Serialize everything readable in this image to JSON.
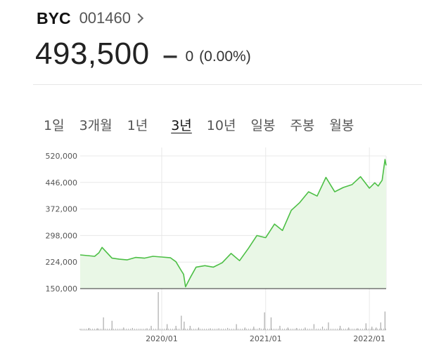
{
  "header": {
    "name": "BYC",
    "code": "001460",
    "price": "493,500",
    "change_symbol": "‒",
    "change_value": "0",
    "change_percent": "(0.00%)"
  },
  "tabs": [
    {
      "label": "1일",
      "active": false
    },
    {
      "label": "3개월",
      "active": false
    },
    {
      "label": "1년",
      "active": false
    },
    {
      "label": "3년",
      "active": true
    },
    {
      "label": "10년",
      "active": false
    },
    {
      "label": "일봉",
      "active": false
    },
    {
      "label": "주봉",
      "active": false
    },
    {
      "label": "월봉",
      "active": false
    }
  ],
  "colors": {
    "line": "#4cbf45",
    "fill": "#e9f7e6",
    "volume": "#aaaaaa",
    "grid": "#e8e8e8"
  },
  "chart_data": {
    "type": "area",
    "title": "",
    "xlabel": "",
    "ylabel": "",
    "ylim": [
      150000,
      520000
    ],
    "yticks": [
      520000,
      446000,
      372000,
      298000,
      224000,
      150000
    ],
    "ytick_labels": [
      "520,000",
      "446,000",
      "372,000",
      "298,000",
      "224,000",
      "150,000"
    ],
    "xlim": [
      "2019-03-20",
      "2022-03-01"
    ],
    "xticks": [
      "2020-01-01",
      "2021-01-01",
      "2022-01-01"
    ],
    "xtick_labels": [
      "2020/01",
      "2021/01",
      "2022/01"
    ],
    "grid": true,
    "series": [
      {
        "x": [
          "2019-03-20",
          "2019-04-15",
          "2019-05-10",
          "2019-05-25",
          "2019-06-05",
          "2019-06-20",
          "2019-07-10",
          "2019-08-05",
          "2019-09-01",
          "2019-10-01",
          "2019-11-01",
          "2019-12-01",
          "2020-01-01",
          "2020-02-01",
          "2020-02-20",
          "2020-03-10",
          "2020-03-18",
          "2020-03-25",
          "2020-04-10",
          "2020-05-01",
          "2020-06-01",
          "2020-07-01",
          "2020-08-01",
          "2020-09-01",
          "2020-10-01",
          "2020-11-01",
          "2020-12-01",
          "2021-01-01",
          "2021-02-01",
          "2021-03-01",
          "2021-04-01",
          "2021-05-01",
          "2021-06-01",
          "2021-07-01",
          "2021-08-01",
          "2021-09-01",
          "2021-10-01",
          "2021-11-01",
          "2021-12-01",
          "2022-01-01",
          "2022-01-20",
          "2022-02-01",
          "2022-02-15",
          "2022-02-25",
          "2022-03-01"
        ],
        "values": [
          244000,
          242000,
          240000,
          250000,
          265000,
          252000,
          235000,
          232000,
          230000,
          237000,
          235000,
          240000,
          238000,
          236000,
          225000,
          200000,
          190000,
          155000,
          180000,
          210000,
          214000,
          210000,
          222000,
          248000,
          228000,
          262000,
          298000,
          292000,
          330000,
          312000,
          368000,
          390000,
          420000,
          408000,
          460000,
          420000,
          432000,
          440000,
          462000,
          430000,
          445000,
          436000,
          452000,
          510000,
          493500
        ]
      }
    ],
    "volume": {
      "x": [
        "2019-03-20",
        "2019-04-20",
        "2019-05-20",
        "2019-06-10",
        "2019-07-10",
        "2019-08-20",
        "2019-09-20",
        "2019-10-20",
        "2019-11-10",
        "2019-11-25",
        "2019-12-20",
        "2020-01-20",
        "2020-02-20",
        "2020-03-10",
        "2020-03-20",
        "2020-04-10",
        "2020-05-10",
        "2020-06-20",
        "2020-07-20",
        "2020-08-20",
        "2020-09-20",
        "2020-10-20",
        "2020-11-20",
        "2020-12-10",
        "2020-12-28",
        "2021-01-20",
        "2021-02-20",
        "2021-03-20",
        "2021-04-20",
        "2021-05-20",
        "2021-06-20",
        "2021-07-20",
        "2021-08-10",
        "2021-09-20",
        "2021-10-20",
        "2021-11-20",
        "2021-12-20",
        "2022-01-10",
        "2022-01-25",
        "2022-02-10",
        "2022-02-25"
      ],
      "values": [
        3,
        5,
        4,
        30,
        22,
        6,
        5,
        3,
        4,
        10,
        90,
        14,
        10,
        34,
        20,
        10,
        6,
        4,
        4,
        5,
        14,
        6,
        8,
        5,
        42,
        30,
        10,
        6,
        5,
        6,
        14,
        8,
        18,
        10,
        6,
        4,
        16,
        8,
        6,
        18,
        44
      ]
    }
  }
}
